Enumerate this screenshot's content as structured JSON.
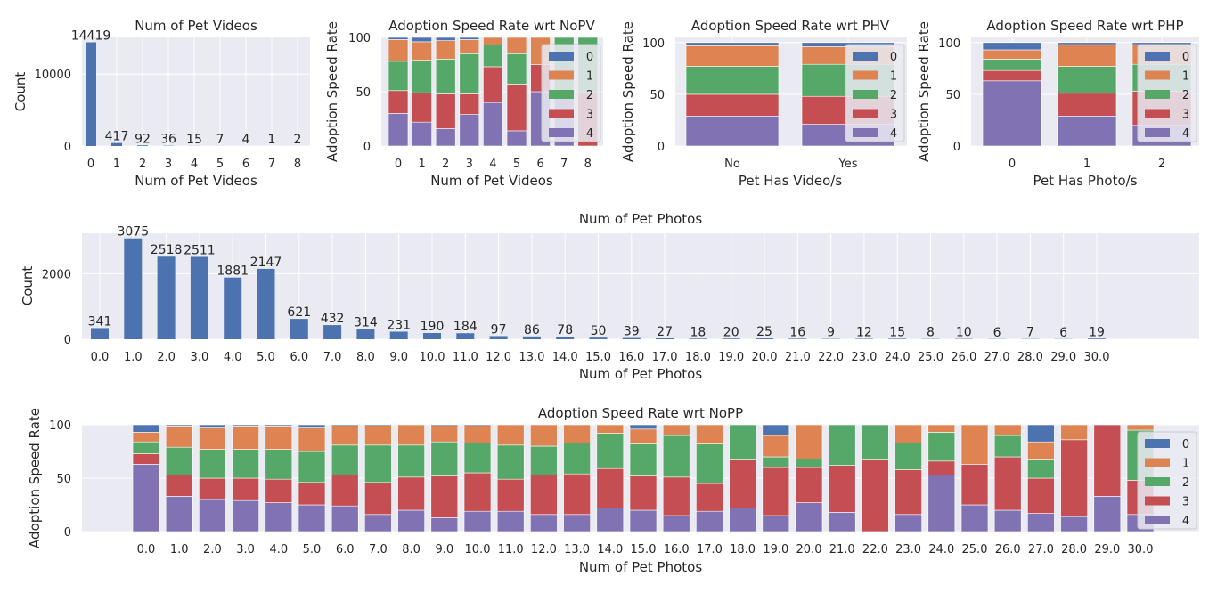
{
  "colors": {
    "0": "#4c72b0",
    "1": "#dd8452",
    "2": "#55a868",
    "3": "#c44e52",
    "4": "#8172b3"
  },
  "chart_data": [
    {
      "id": "c1",
      "type": "bar",
      "title": "Num of Pet Videos",
      "xlabel": "Num of Pet Videos",
      "ylabel": "Count",
      "categories": [
        "0",
        "1",
        "2",
        "3",
        "4",
        "5",
        "6",
        "7",
        "8"
      ],
      "values": [
        14419,
        417,
        92,
        36,
        15,
        7,
        4,
        1,
        2
      ],
      "data_labels": [
        "14419",
        "417",
        "92",
        "36",
        "15",
        "7",
        "4",
        "1",
        "2"
      ],
      "ylim": [
        0,
        15100
      ],
      "yticks": [
        0,
        10000
      ],
      "grid": true
    },
    {
      "id": "c2",
      "type": "bar",
      "stacked": true,
      "title": "Adoption Speed Rate wrt NoPV",
      "xlabel": "Num of Pet Videos",
      "ylabel": "Adoption Speed Rate",
      "categories": [
        "0",
        "1",
        "2",
        "3",
        "4",
        "5",
        "6",
        "7",
        "8"
      ],
      "series": [
        {
          "name": "0",
          "values": [
            2,
            4,
            3,
            2,
            0,
            0,
            0,
            0,
            0
          ]
        },
        {
          "name": "1",
          "values": [
            20,
            17,
            17,
            13,
            7,
            15,
            25,
            0,
            0
          ]
        },
        {
          "name": "2",
          "values": [
            27,
            30,
            32,
            37,
            20,
            28,
            0,
            50,
            50
          ]
        },
        {
          "name": "3",
          "values": [
            21,
            27,
            32,
            19,
            33,
            43,
            25,
            0,
            50
          ]
        },
        {
          "name": "4",
          "values": [
            30,
            22,
            16,
            29,
            40,
            14,
            50,
            50,
            0
          ]
        }
      ],
      "ylim": [
        0,
        100
      ],
      "yticks": [
        0,
        50,
        100
      ],
      "legend": [
        "0",
        "1",
        "2",
        "3",
        "4"
      ],
      "legend_position": "right",
      "grid": true
    },
    {
      "id": "c3",
      "type": "bar",
      "stacked": true,
      "title": "Adoption Speed Rate wrt PHV",
      "xlabel": "Pet Has Video/s",
      "ylabel": "Adoption Speed Rate",
      "categories": [
        "No",
        "Yes"
      ],
      "series": [
        {
          "name": "0",
          "values": [
            3,
            4
          ]
        },
        {
          "name": "1",
          "values": [
            20,
            17
          ]
        },
        {
          "name": "2",
          "values": [
            27,
            31
          ]
        },
        {
          "name": "3",
          "values": [
            21,
            27
          ]
        },
        {
          "name": "4",
          "values": [
            29,
            21
          ]
        }
      ],
      "ylim": [
        0,
        105
      ],
      "yticks": [
        0,
        50,
        100
      ],
      "legend": [
        "0",
        "1",
        "2",
        "3",
        "4"
      ],
      "legend_position": "right",
      "grid": true
    },
    {
      "id": "c4",
      "type": "bar",
      "stacked": true,
      "title": "Adoption Speed Rate wrt PHP",
      "xlabel": "Pet Has Photo/s",
      "ylabel": "Adoption Speed Rate",
      "categories": [
        "0",
        "1",
        "2"
      ],
      "series": [
        {
          "name": "0",
          "values": [
            7,
            2,
            2
          ]
        },
        {
          "name": "1",
          "values": [
            9,
            21,
            19
          ]
        },
        {
          "name": "2",
          "values": [
            11,
            26,
            26
          ]
        },
        {
          "name": "3",
          "values": [
            10,
            22,
            33
          ]
        },
        {
          "name": "4",
          "values": [
            63,
            29,
            20
          ]
        }
      ],
      "ylim": [
        0,
        105
      ],
      "yticks": [
        0,
        50,
        100
      ],
      "legend": [
        "0",
        "1",
        "2",
        "3",
        "4"
      ],
      "legend_position": "right",
      "grid": true
    },
    {
      "id": "c5",
      "type": "bar",
      "title": "Num of Pet Photos",
      "xlabel": "Num of Pet Photos",
      "ylabel": "Count",
      "categories": [
        "0.0",
        "1.0",
        "2.0",
        "3.0",
        "4.0",
        "5.0",
        "6.0",
        "7.0",
        "8.0",
        "9.0",
        "10.0",
        "11.0",
        "12.0",
        "13.0",
        "14.0",
        "15.0",
        "16.0",
        "17.0",
        "18.0",
        "19.0",
        "20.0",
        "21.0",
        "22.0",
        "23.0",
        "24.0",
        "25.0",
        "26.0",
        "27.0",
        "28.0",
        "29.0",
        "30.0"
      ],
      "values": [
        341,
        3075,
        2518,
        2511,
        1881,
        2147,
        621,
        432,
        314,
        231,
        190,
        184,
        97,
        86,
        78,
        50,
        39,
        27,
        18,
        20,
        25,
        16,
        9,
        12,
        15,
        8,
        10,
        6,
        7,
        6,
        19
      ],
      "data_labels": [
        "341",
        "3075",
        "2518",
        "2511",
        "1881",
        "2147",
        "621",
        "432",
        "314",
        "231",
        "190",
        "184",
        "97",
        "86",
        "78",
        "50",
        "39",
        "27",
        "18",
        "20",
        "25",
        "16",
        "9",
        "12",
        "15",
        "8",
        "10",
        "6",
        "7",
        "6",
        "19"
      ],
      "ylim": [
        0,
        3230
      ],
      "yticks": [
        0,
        2000
      ],
      "grid": true
    },
    {
      "id": "c6",
      "type": "bar",
      "stacked": true,
      "title": "Adoption Speed Rate wrt NoPP",
      "xlabel": "Num of Pet Photos",
      "ylabel": "Adoption Speed Rate",
      "categories": [
        "0.0",
        "1.0",
        "2.0",
        "3.0",
        "4.0",
        "5.0",
        "6.0",
        "7.0",
        "8.0",
        "9.0",
        "10.0",
        "11.0",
        "12.0",
        "13.0",
        "14.0",
        "15.0",
        "16.0",
        "17.0",
        "18.0",
        "19.0",
        "20.0",
        "21.0",
        "22.0",
        "23.0",
        "24.0",
        "25.0",
        "26.0",
        "27.0",
        "28.0",
        "29.0",
        "30.0"
      ],
      "series": [
        {
          "name": "0",
          "values": [
            7,
            2,
            3,
            2,
            2,
            3,
            1,
            1,
            0,
            1,
            1,
            0,
            0,
            0,
            0,
            4,
            0,
            0,
            0,
            10,
            0,
            0,
            0,
            0,
            0,
            0,
            0,
            16,
            0,
            0,
            0
          ]
        },
        {
          "name": "1",
          "values": [
            9,
            19,
            20,
            21,
            21,
            22,
            18,
            18,
            19,
            15,
            16,
            19,
            20,
            17,
            8,
            14,
            10,
            18,
            0,
            20,
            32,
            0,
            0,
            17,
            7,
            37,
            10,
            17,
            14,
            0,
            5
          ]
        },
        {
          "name": "2",
          "values": [
            11,
            26,
            27,
            27,
            28,
            29,
            28,
            35,
            30,
            32,
            28,
            32,
            27,
            29,
            33,
            30,
            39,
            37,
            33,
            10,
            8,
            38,
            33,
            25,
            27,
            0,
            20,
            17,
            0,
            0,
            47
          ]
        },
        {
          "name": "3",
          "values": [
            10,
            20,
            20,
            21,
            22,
            21,
            29,
            30,
            31,
            39,
            36,
            30,
            37,
            38,
            37,
            32,
            36,
            26,
            45,
            45,
            33,
            44,
            67,
            42,
            13,
            38,
            50,
            33,
            72,
            67,
            32
          ]
        },
        {
          "name": "4",
          "values": [
            63,
            33,
            30,
            29,
            27,
            25,
            24,
            16,
            20,
            13,
            19,
            19,
            16,
            16,
            22,
            20,
            15,
            19,
            22,
            15,
            27,
            18,
            0,
            16,
            53,
            25,
            20,
            17,
            14,
            33,
            16
          ]
        }
      ],
      "ylim": [
        0,
        100
      ],
      "yticks": [
        0,
        50,
        100
      ],
      "legend": [
        "0",
        "1",
        "2",
        "3",
        "4"
      ],
      "legend_position": "right",
      "grid": true
    }
  ]
}
